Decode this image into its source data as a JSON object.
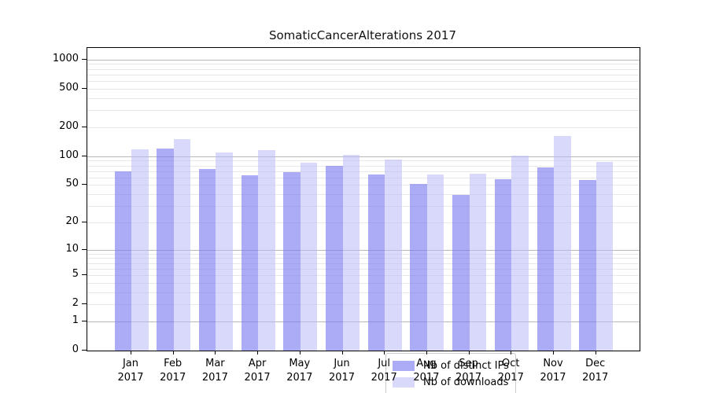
{
  "title": "SomaticCancerAlterations 2017",
  "colors": {
    "ips_bar": "rgba(120,120,240,0.62)",
    "downloads_bar": "rgba(185,185,248,0.55)",
    "major_grid": "#b8b8b8",
    "minor_grid": "#e8e8e8",
    "axis": "#000000"
  },
  "legend": {
    "items": [
      {
        "label": "Nb of distinct IPs",
        "color_key": "ips_bar"
      },
      {
        "label": "Nb of downloads",
        "color_key": "downloads_bar"
      }
    ]
  },
  "chart_data": {
    "type": "bar",
    "title": "SomaticCancerAlterations 2017",
    "categories": [
      "Jan 2017",
      "Feb 2017",
      "Mar 2017",
      "Apr 2017",
      "May 2017",
      "Jun 2017",
      "Jul 2017",
      "Aug 2017",
      "Sep 2017",
      "Oct 2017",
      "Nov 2017",
      "Dec 2017"
    ],
    "series": [
      {
        "name": "Nb of distinct IPs",
        "color_key": "ips_bar",
        "values": [
          70,
          120,
          74,
          63,
          68,
          79,
          65,
          51,
          39,
          58,
          77,
          56
        ]
      },
      {
        "name": "Nb of downloads",
        "color_key": "downloads_bar",
        "values": [
          118,
          150,
          110,
          116,
          86,
          104,
          93,
          64,
          66,
          102,
          161,
          87
        ]
      }
    ],
    "xlabel": "",
    "ylabel": "",
    "yscale": "log1p",
    "ylim": [
      0,
      1000
    ],
    "ytick_values": [
      1000,
      500,
      200,
      100,
      50,
      20,
      10,
      5,
      2,
      1,
      0
    ],
    "ytick_labels": [
      "1000",
      "500",
      "200",
      "100",
      "50",
      "20",
      "10",
      "5",
      "2",
      "1",
      "0"
    ],
    "minor_grid_values": [
      2,
      3,
      4,
      5,
      6,
      7,
      8,
      9,
      20,
      30,
      40,
      50,
      60,
      70,
      80,
      90,
      200,
      300,
      400,
      500,
      600,
      700,
      800,
      900
    ],
    "major_grid_values": [
      1,
      10,
      100,
      1000
    ],
    "grid": true,
    "legend_position": "lower center"
  }
}
